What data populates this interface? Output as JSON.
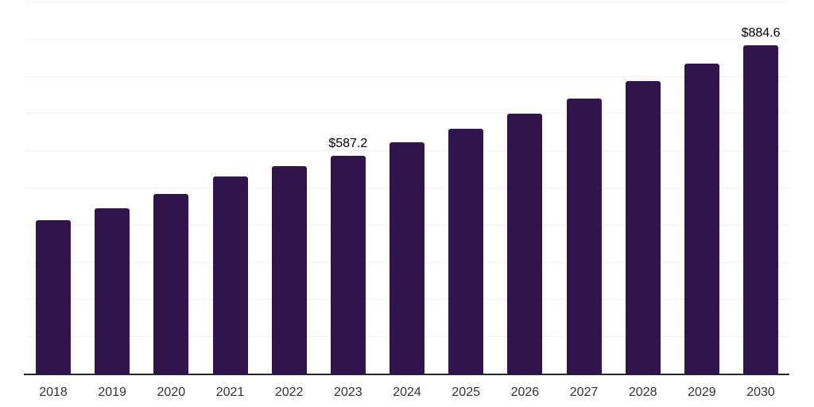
{
  "chart_data": {
    "type": "bar",
    "title": "",
    "xlabel": "",
    "ylabel": "",
    "categories": [
      "2018",
      "2019",
      "2020",
      "2021",
      "2022",
      "2023",
      "2024",
      "2025",
      "2026",
      "2027",
      "2028",
      "2029",
      "2030"
    ],
    "values": [
      415.0,
      446.1,
      484.4,
      531.4,
      559.8,
      587.2,
      624.0,
      661.0,
      701.5,
      740.9,
      787.9,
      835.5,
      884.6
    ],
    "data_labels": [
      "",
      "",
      "",
      "",
      "",
      "$587.2",
      "",
      "",
      "",
      "",
      "",
      "",
      "$884.6"
    ],
    "ylim": [
      0,
      1000
    ],
    "gridline_step": 100,
    "grid": "horizontal",
    "legend": "none",
    "colors": {
      "bar": "#2f154c",
      "gridline": "#f2f2f2",
      "axis_line": "#262626",
      "tick_label": "#333333",
      "data_label": "#000000"
    }
  }
}
